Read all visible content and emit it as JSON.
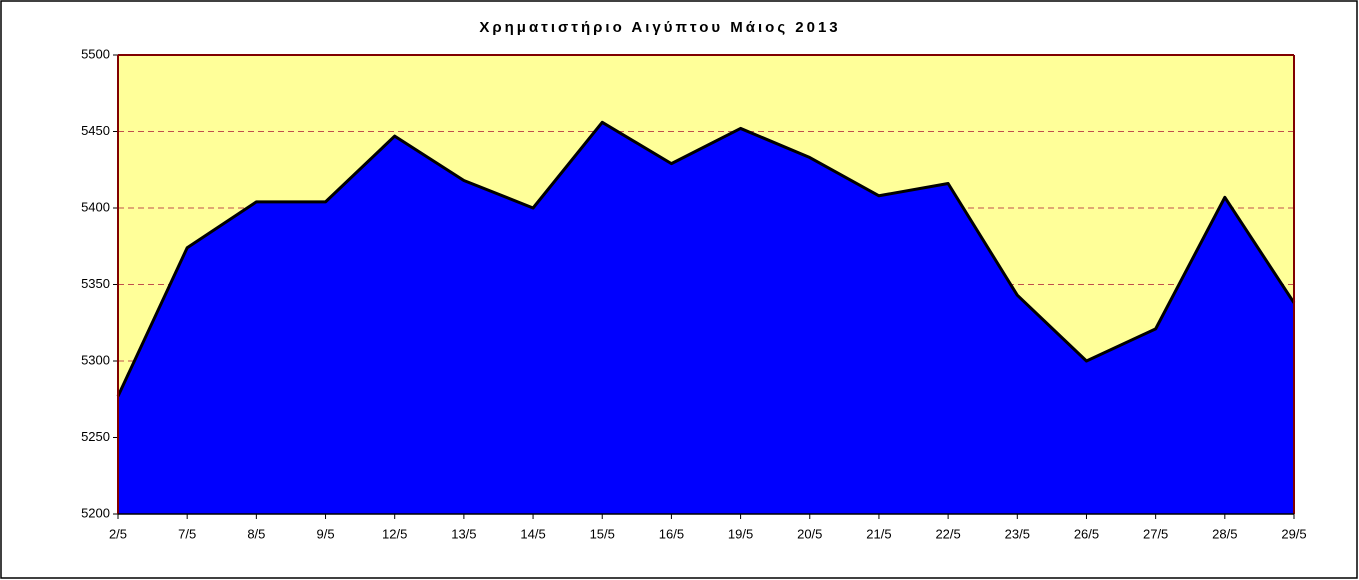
{
  "chart_data": {
    "type": "area",
    "title": "Χρηματιστήριο Αιγύπτου Μάιος 2013",
    "categories": [
      "2/5",
      "7/5",
      "8/5",
      "9/5",
      "12/5",
      "13/5",
      "14/5",
      "15/5",
      "16/5",
      "19/5",
      "20/5",
      "21/5",
      "22/5",
      "23/5",
      "26/5",
      "27/5",
      "28/5",
      "29/5"
    ],
    "values": [
      5277,
      5374,
      5404,
      5404,
      5447,
      5418,
      5400,
      5456,
      5429,
      5452,
      5433,
      5408,
      5416,
      5343,
      5300,
      5321,
      5407,
      5338
    ],
    "color": "#0000ff",
    "line_color": "#000000",
    "plot_background": "#ffff99",
    "grid_color": "#c0504d",
    "ylim": [
      5200,
      5500
    ],
    "yticks": [
      5200,
      5250,
      5300,
      5350,
      5400,
      5450,
      5500
    ],
    "grid": true
  }
}
